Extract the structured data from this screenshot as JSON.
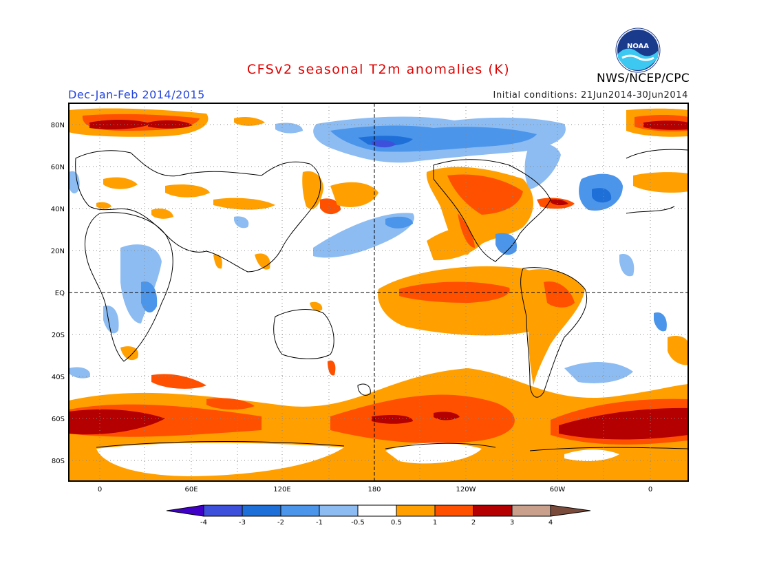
{
  "header": {
    "title": "CFSv2 seasonal T2m anomalies (K)",
    "season": "Dec-Jan-Feb 2014/2015",
    "initial_conditions": "Initial conditions: 21Jun2014-30Jun2014",
    "organization": "NWS/NCEP/CPC",
    "logo_text": "NOAA"
  },
  "map": {
    "lat_labels": [
      "80N",
      "60N",
      "40N",
      "20N",
      "EQ",
      "20S",
      "40S",
      "60S",
      "80S"
    ],
    "lon_labels": [
      "0",
      "60E",
      "120E",
      "180",
      "120W",
      "60W",
      "0"
    ]
  },
  "legend": {
    "ticks": [
      "-4",
      "-3",
      "-2",
      "-1",
      "-0.5",
      "0.5",
      "1",
      "2",
      "3",
      "4"
    ],
    "colors": [
      "#4000c8",
      "#3c50dc",
      "#1f6fd8",
      "#4b95ea",
      "#8cbcf2",
      "#ffffff",
      "#ffa000",
      "#ff5000",
      "#b40000",
      "#c8a08c",
      "#7a4a3a"
    ]
  },
  "colors": {
    "title": "#e00000",
    "season": "#2244dd",
    "warm_1": "#ffa000",
    "warm_2": "#ff5000",
    "warm_3": "#b40000",
    "cool_1": "#8cbcf2",
    "cool_2": "#4b95ea",
    "cool_3": "#1f6fd8",
    "cool_4": "#3c50dc"
  }
}
